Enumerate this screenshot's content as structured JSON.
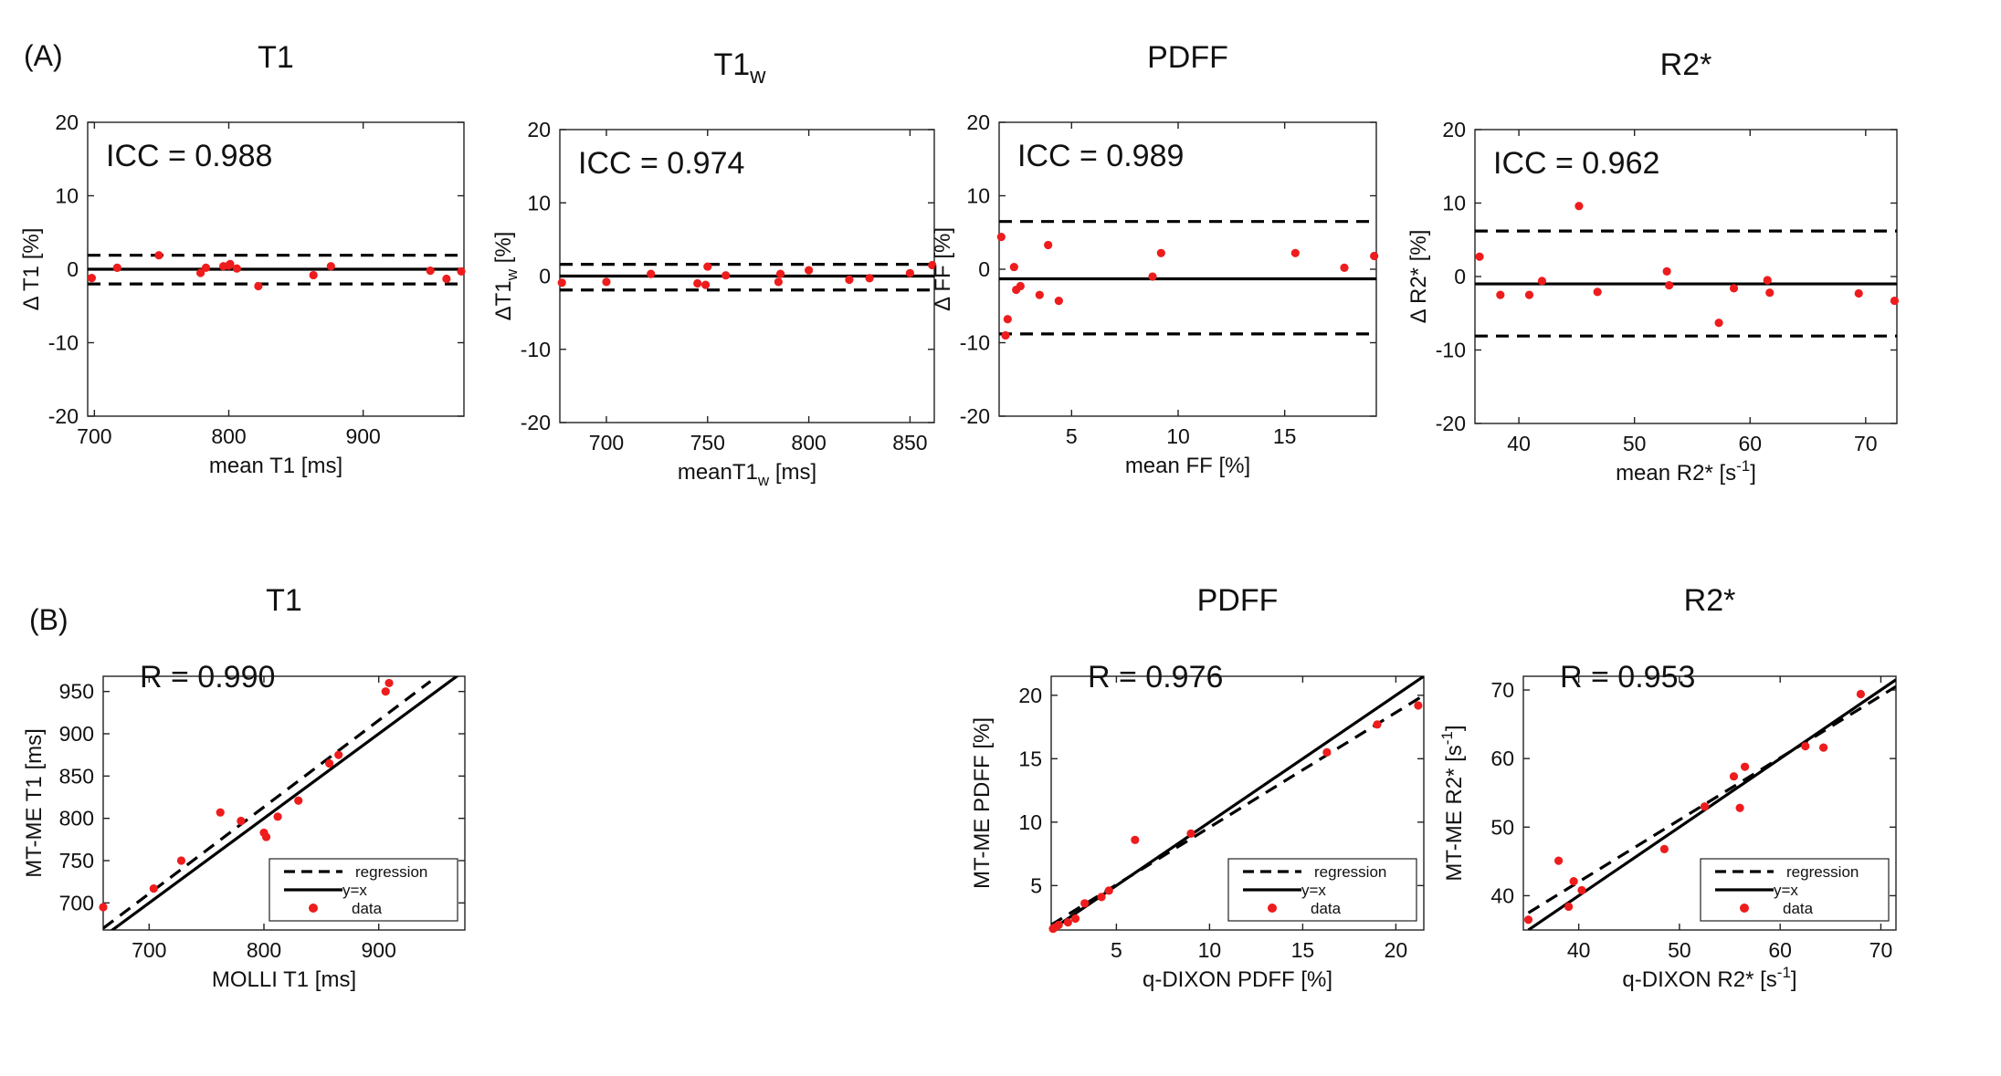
{
  "figure": {
    "letters": [
      "(A)",
      "(B)"
    ],
    "colors": {
      "data": "#ee1c1c",
      "line": "#000000"
    }
  },
  "chart_data": [
    {
      "id": "ba_t1",
      "type": "scatter",
      "subplot": "Bland-Altman",
      "title": "T1",
      "title_sub": "",
      "stat_label": "ICC = 0.988",
      "xlabel": "mean T1 [ms]",
      "ylabel": "Δ T1 [%]",
      "xlim": [
        695,
        975
      ],
      "ylim": [
        -20,
        20
      ],
      "xticks": [
        700,
        800,
        900
      ],
      "yticks": [
        -20,
        -10,
        0,
        10,
        20
      ],
      "hlines": [
        {
          "style": "solid",
          "y": 0
        },
        {
          "style": "dashed",
          "y": 1.9
        },
        {
          "style": "dashed",
          "y": -2.0
        }
      ],
      "points": {
        "x": [
          698,
          717,
          748,
          779,
          783,
          796,
          800,
          801,
          806,
          822,
          863,
          876,
          950,
          962,
          973
        ],
        "y": [
          -1.2,
          0.2,
          1.9,
          -0.5,
          0.2,
          0.4,
          0.5,
          0.7,
          0.1,
          -2.3,
          -0.8,
          0.4,
          -0.2,
          -1.3,
          -0.3
        ]
      }
    },
    {
      "id": "ba_t1w",
      "type": "scatter",
      "subplot": "Bland-Altman",
      "title": "T1",
      "title_sub": "w",
      "stat_label": "ICC = 0.974",
      "xlabel": "meanT1",
      "xlabel_sub": "w",
      "xlabel_end": " [ms]",
      "ylabel": "ΔT1",
      "ylabel_sub": "w",
      "ylabel_end": " [%]",
      "xlim": [
        677,
        862
      ],
      "ylim": [
        -20,
        20
      ],
      "xticks": [
        700,
        750,
        800,
        850
      ],
      "yticks": [
        -20,
        -10,
        0,
        10,
        20
      ],
      "hlines": [
        {
          "style": "solid",
          "y": 0
        },
        {
          "style": "dashed",
          "y": 1.6
        },
        {
          "style": "dashed",
          "y": -1.9
        }
      ],
      "points": {
        "x": [
          678,
          700,
          722,
          745,
          749,
          750,
          759,
          785,
          786,
          800,
          820,
          830,
          850,
          861
        ],
        "y": [
          -0.9,
          -0.8,
          0.3,
          -1.0,
          -1.2,
          1.3,
          0.1,
          -0.8,
          0.3,
          0.8,
          -0.5,
          -0.3,
          0.4,
          1.5
        ]
      }
    },
    {
      "id": "ba_pdff",
      "type": "scatter",
      "subplot": "Bland-Altman",
      "title": "PDFF",
      "title_sub": "",
      "stat_label": "ICC = 0.989",
      "xlabel": "mean FF [%]",
      "ylabel": "Δ FF [%]",
      "xlim": [
        1.6,
        19.3
      ],
      "ylim": [
        -20,
        20
      ],
      "xticks": [
        5,
        10,
        15
      ],
      "yticks": [
        -20,
        -10,
        0,
        10,
        20
      ],
      "hlines": [
        {
          "style": "solid",
          "y": -1.3
        },
        {
          "style": "dashed",
          "y": 6.5
        },
        {
          "style": "dashed",
          "y": -8.8
        }
      ],
      "points": {
        "x": [
          1.7,
          1.9,
          2.0,
          2.3,
          2.4,
          2.6,
          3.5,
          3.9,
          4.4,
          8.8,
          9.2,
          15.5,
          17.8,
          19.2
        ],
        "y": [
          4.4,
          -9.0,
          -6.8,
          0.3,
          -2.8,
          -2.3,
          -3.5,
          3.3,
          -4.3,
          -1.0,
          2.2,
          2.2,
          0.2,
          1.8
        ]
      }
    },
    {
      "id": "ba_r2",
      "type": "scatter",
      "subplot": "Bland-Altman",
      "title": "R2*",
      "title_sub": "",
      "stat_label": "ICC = 0.962",
      "xlabel": "mean R2* [s",
      "xlabel_sup": "-1",
      "xlabel_end": "]",
      "ylabel": "Δ R2* [%]",
      "xlim": [
        36.2,
        72.7
      ],
      "ylim": [
        -20,
        20
      ],
      "xticks": [
        40,
        50,
        60,
        70
      ],
      "yticks": [
        -20,
        -10,
        0,
        10,
        20
      ],
      "hlines": [
        {
          "style": "solid",
          "y": -1.0
        },
        {
          "style": "dashed",
          "y": 6.2
        },
        {
          "style": "dashed",
          "y": -8.1
        }
      ],
      "points": {
        "x": [
          36.6,
          38.4,
          40.9,
          42.0,
          45.2,
          46.8,
          52.8,
          53.0,
          57.3,
          58.6,
          61.5,
          61.7,
          69.4,
          72.5
        ],
        "y": [
          2.7,
          -2.5,
          -2.5,
          -0.6,
          9.6,
          -2.1,
          0.7,
          -1.2,
          -6.3,
          -1.6,
          -0.5,
          -2.2,
          -2.3,
          -3.3
        ]
      }
    },
    {
      "id": "sc_t1",
      "type": "scatter",
      "subplot": "correlation",
      "title": "T1",
      "title_sub": "",
      "stat_label": "R = 0.990",
      "xlabel": "MOLLI  T1 [ms]",
      "ylabel": "MT-ME  T1 [ms]",
      "xlim": [
        660,
        975
      ],
      "ylim": [
        668,
        968
      ],
      "xticks": [
        700,
        800,
        900
      ],
      "yticks": [
        700,
        750,
        800,
        850,
        900,
        950
      ],
      "lines": [
        {
          "name": "regression",
          "style": "dashed",
          "x": [
            660,
            945
          ],
          "y": [
            670,
            962
          ]
        },
        {
          "name": "y=x",
          "style": "solid",
          "x": [
            660,
            975
          ],
          "y": [
            660,
            975
          ]
        }
      ],
      "legend": [
        "regression",
        "y=x",
        "data"
      ],
      "points": {
        "x": [
          660,
          704,
          728,
          762,
          780,
          800,
          802,
          812,
          830,
          857,
          865,
          906,
          909
        ],
        "y": [
          695,
          717,
          750,
          807,
          797,
          783,
          778,
          802,
          821,
          865,
          875,
          950,
          960
        ]
      }
    },
    {
      "id": "sc_pdff",
      "type": "scatter",
      "subplot": "correlation",
      "title": "PDFF",
      "title_sub": "",
      "stat_label": "R = 0.976",
      "xlabel": "q-DIXON  PDFF [%]",
      "ylabel": "MT-ME  PDFF [%]",
      "xlim": [
        1.5,
        21.5
      ],
      "ylim": [
        1.5,
        21.5
      ],
      "xticks": [
        5,
        10,
        15,
        20
      ],
      "yticks": [
        5,
        10,
        15,
        20
      ],
      "lines": [
        {
          "name": "regression",
          "style": "dashed",
          "x": [
            1.5,
            21.5
          ],
          "y": [
            1.9,
            20.0
          ]
        },
        {
          "name": "y=x",
          "style": "solid",
          "x": [
            1.5,
            21.5
          ],
          "y": [
            1.5,
            21.5
          ]
        }
      ],
      "legend": [
        "regression",
        "y=x",
        "data"
      ],
      "points": {
        "x": [
          1.6,
          1.7,
          1.9,
          2.4,
          2.8,
          3.3,
          4.2,
          4.6,
          6.0,
          9.0,
          16.3,
          19.0,
          21.2
        ],
        "y": [
          1.6,
          1.7,
          1.9,
          2.1,
          2.4,
          3.6,
          4.1,
          4.6,
          8.6,
          9.1,
          15.5,
          17.7,
          19.2
        ]
      }
    },
    {
      "id": "sc_r2",
      "type": "scatter",
      "subplot": "correlation",
      "title": "R2*",
      "title_sub": "",
      "stat_label": "R = 0.953",
      "xlabel": "q-DIXON  R2* [s",
      "xlabel_sup": "-1",
      "xlabel_end": "]",
      "ylabel": "MT-ME  R2* [s",
      "ylabel_sup": "-1",
      "ylabel_end": "]",
      "xlim": [
        34.5,
        71.5
      ],
      "ylim": [
        35,
        72
      ],
      "xticks": [
        40,
        50,
        60,
        70
      ],
      "yticks": [
        40,
        50,
        60,
        70
      ],
      "lines": [
        {
          "name": "regression",
          "style": "dashed",
          "x": [
            35,
            71.5
          ],
          "y": [
            37.5,
            70.5
          ]
        },
        {
          "name": "y=x",
          "style": "solid",
          "x": [
            35,
            71.5
          ],
          "y": [
            35,
            71.5
          ]
        }
      ],
      "legend": [
        "regression",
        "y=x",
        "data"
      ],
      "points": {
        "x": [
          35.0,
          38.0,
          39.0,
          39.5,
          40.3,
          48.5,
          52.5,
          55.4,
          56.0,
          56.5,
          62.5,
          64.3,
          68.0
        ],
        "y": [
          36.5,
          45.1,
          38.4,
          42.1,
          40.8,
          46.8,
          53.0,
          57.4,
          52.8,
          58.8,
          61.8,
          61.6,
          69.4
        ]
      }
    }
  ]
}
